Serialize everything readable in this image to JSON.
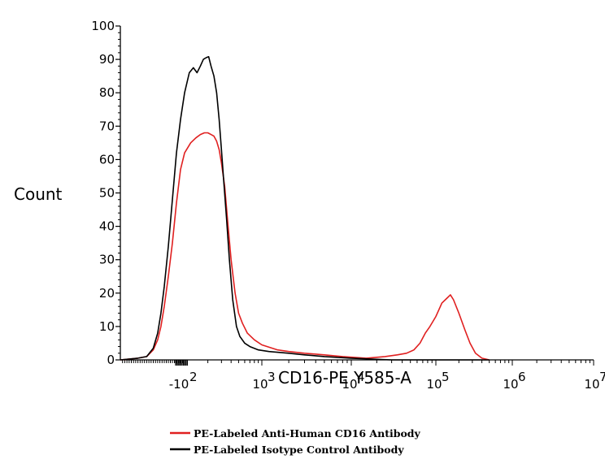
{
  "chart_data": {
    "type": "line",
    "xlabel": "CD16-PE Y585-A",
    "ylabel": "Count",
    "ylim": [
      0,
      100
    ],
    "y_ticks": [
      "0",
      "10",
      "20",
      "30",
      "40",
      "50",
      "60",
      "70",
      "80",
      "90",
      "100"
    ],
    "x_scale": "biexponential (log-like)",
    "x_ticks": [
      {
        "base": "-10",
        "exp": "2"
      },
      {
        "base": "10",
        "exp": "3"
      },
      {
        "base": "10",
        "exp": "4"
      },
      {
        "base": "10",
        "exp": "5"
      },
      {
        "base": "10",
        "exp": "6"
      },
      {
        "base": "10",
        "exp": "7"
      }
    ],
    "grid": false,
    "legend_position": "bottom",
    "series": [
      {
        "name": "PE-Labeled Anti-Human CD16 Antibody",
        "color": "#e02020",
        "points": [
          [
            -200,
            0
          ],
          [
            -120,
            0.5
          ],
          [
            -80,
            1
          ],
          [
            -50,
            3
          ],
          [
            -30,
            6
          ],
          [
            -15,
            10
          ],
          [
            0,
            16
          ],
          [
            20,
            25
          ],
          [
            40,
            35
          ],
          [
            60,
            47
          ],
          [
            80,
            57
          ],
          [
            100,
            62
          ],
          [
            120,
            65
          ],
          [
            140,
            66.5
          ],
          [
            160,
            67.5
          ],
          [
            180,
            68
          ],
          [
            200,
            68
          ],
          [
            220,
            67.5
          ],
          [
            240,
            67
          ],
          [
            260,
            65.5
          ],
          [
            280,
            63
          ],
          [
            300,
            59
          ],
          [
            330,
            52
          ],
          [
            360,
            42
          ],
          [
            400,
            30
          ],
          [
            450,
            20
          ],
          [
            500,
            14
          ],
          [
            560,
            11
          ],
          [
            650,
            8
          ],
          [
            800,
            6
          ],
          [
            1000,
            4.5
          ],
          [
            1500,
            3
          ],
          [
            2000,
            2.5
          ],
          [
            3000,
            2
          ],
          [
            5000,
            1.5
          ],
          [
            8000,
            1
          ],
          [
            15000,
            0.5
          ],
          [
            25000,
            1
          ],
          [
            35000,
            1.5
          ],
          [
            45000,
            2
          ],
          [
            55000,
            3
          ],
          [
            65000,
            5
          ],
          [
            75000,
            8
          ],
          [
            85000,
            10
          ],
          [
            100000,
            13
          ],
          [
            120000,
            17
          ],
          [
            140000,
            18.5
          ],
          [
            155000,
            19.5
          ],
          [
            170000,
            18
          ],
          [
            200000,
            14
          ],
          [
            240000,
            9
          ],
          [
            280000,
            5
          ],
          [
            330000,
            2
          ],
          [
            400000,
            0.5
          ],
          [
            500000,
            0
          ]
        ]
      },
      {
        "name": "PE-Labeled Isotype Control Antibody",
        "color": "#000000",
        "points": [
          [
            -200,
            0
          ],
          [
            -120,
            0.5
          ],
          [
            -80,
            1
          ],
          [
            -50,
            3.5
          ],
          [
            -30,
            8
          ],
          [
            -15,
            14
          ],
          [
            0,
            22
          ],
          [
            20,
            34
          ],
          [
            40,
            48
          ],
          [
            60,
            62
          ],
          [
            80,
            72
          ],
          [
            100,
            80
          ],
          [
            115,
            86
          ],
          [
            130,
            87.5
          ],
          [
            145,
            86
          ],
          [
            160,
            88
          ],
          [
            175,
            90
          ],
          [
            190,
            90.5
          ],
          [
            205,
            90.8
          ],
          [
            220,
            88
          ],
          [
            240,
            85
          ],
          [
            260,
            80
          ],
          [
            280,
            72
          ],
          [
            300,
            63
          ],
          [
            320,
            54
          ],
          [
            350,
            42
          ],
          [
            380,
            30
          ],
          [
            420,
            18
          ],
          [
            470,
            10
          ],
          [
            520,
            7
          ],
          [
            600,
            5
          ],
          [
            700,
            4
          ],
          [
            900,
            3
          ],
          [
            1200,
            2.5
          ],
          [
            2000,
            2
          ],
          [
            3000,
            1.5
          ],
          [
            5000,
            1
          ],
          [
            10000,
            0.5
          ],
          [
            30000,
            0
          ],
          [
            500000,
            0
          ]
        ]
      }
    ]
  }
}
